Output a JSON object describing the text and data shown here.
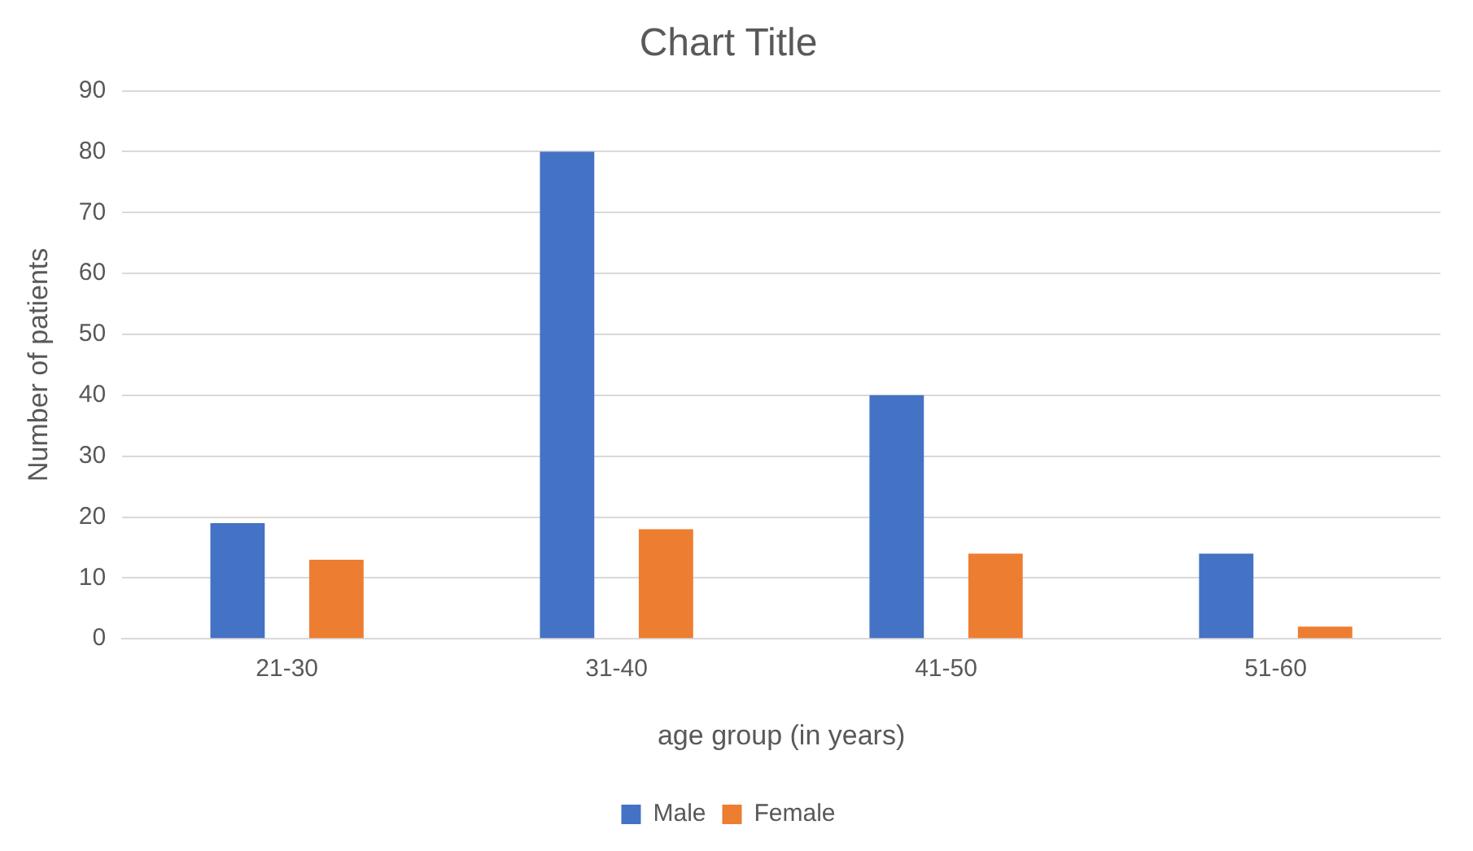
{
  "chart_data": {
    "type": "bar",
    "title": "Chart Title",
    "xlabel": "age group (in years)",
    "ylabel": "Number of patients",
    "categories": [
      "21-30",
      "31-40",
      "41-50",
      "51-60"
    ],
    "series": [
      {
        "name": "Male",
        "color": "#4472c4",
        "values": [
          19,
          80,
          40,
          14
        ]
      },
      {
        "name": "Female",
        "color": "#ed7d31",
        "values": [
          13,
          18,
          14,
          2
        ]
      }
    ],
    "ylim": [
      0,
      90
    ],
    "yticks": [
      0,
      10,
      20,
      30,
      40,
      50,
      60,
      70,
      80,
      90
    ],
    "grid": "y",
    "legend": "bottom"
  }
}
